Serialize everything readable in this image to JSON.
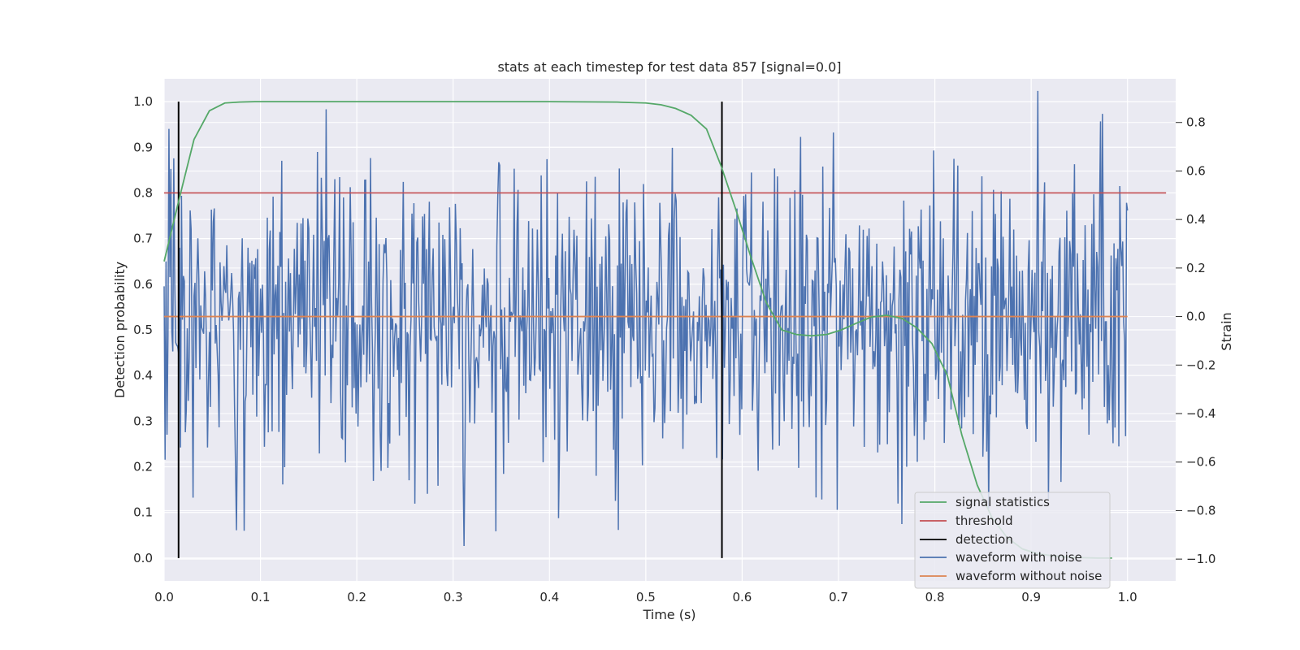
{
  "chart_data": {
    "type": "line",
    "title": "stats at each timestep for test data 857 [signal=0.0]",
    "xlabel": "Time (s)",
    "ylabel_left": "Detection probability",
    "ylabel_right": "Strain",
    "xlim": [
      0.0,
      1.05
    ],
    "ylim_left": [
      -0.05,
      1.05
    ],
    "ylim_right": [
      -1.09,
      0.98
    ],
    "x_ticks": [
      "0.0",
      "0.1",
      "0.2",
      "0.3",
      "0.4",
      "0.5",
      "0.6",
      "0.7",
      "0.8",
      "0.9",
      "1.0"
    ],
    "y_ticks_left": [
      "0.0",
      "0.1",
      "0.2",
      "0.3",
      "0.4",
      "0.5",
      "0.6",
      "0.7",
      "0.8",
      "0.9",
      "1.0"
    ],
    "y_ticks_right": [
      "−1.0",
      "−0.8",
      "−0.6",
      "−0.4",
      "−0.2",
      "0.0",
      "0.2",
      "0.4",
      "0.6",
      "0.8"
    ],
    "grid": true,
    "legend_position": "lower-right",
    "colors": {
      "background": "#eaeaf2",
      "grid": "#ffffff",
      "signal_statistics": "#55a868",
      "threshold": "#c44e52",
      "detection": "#000000",
      "waveform_with_noise": "#4c72b0",
      "waveform_without_noise": "#dd8452"
    },
    "series": [
      {
        "name": "signal statistics",
        "axis": "left",
        "x": [
          0.0,
          0.016,
          0.031,
          0.047,
          0.063,
          0.078,
          0.094,
          0.109,
          0.125,
          0.141,
          0.156,
          0.2,
          0.3,
          0.4,
          0.47,
          0.5,
          0.516,
          0.531,
          0.547,
          0.563,
          0.578,
          0.594,
          0.609,
          0.625,
          0.641,
          0.656,
          0.672,
          0.688,
          0.703,
          0.719,
          0.734,
          0.75,
          0.766,
          0.781,
          0.797,
          0.813,
          0.828,
          0.844,
          0.859,
          0.875,
          0.891,
          0.906,
          0.922,
          0.938,
          0.953,
          0.969,
          0.984
        ],
        "y": [
          0.65,
          0.79,
          0.917,
          0.98,
          0.997,
          0.999,
          1.0,
          1.0,
          1.0,
          1.0,
          1.0,
          1.0,
          1.0,
          1.0,
          0.999,
          0.997,
          0.993,
          0.985,
          0.97,
          0.94,
          0.86,
          0.76,
          0.66,
          0.56,
          0.5,
          0.49,
          0.487,
          0.49,
          0.5,
          0.515,
          0.528,
          0.532,
          0.525,
          0.505,
          0.47,
          0.4,
          0.27,
          0.16,
          0.09,
          0.045,
          0.02,
          0.01,
          0.005,
          0.002,
          0.001,
          0.0,
          0.0
        ]
      },
      {
        "name": "threshold",
        "axis": "left",
        "x": [
          0.0,
          1.04
        ],
        "y": [
          0.8,
          0.8
        ]
      },
      {
        "name": "detection",
        "axis": "left",
        "x_positions": [
          0.015,
          0.579
        ],
        "y_range": [
          0.0,
          1.0
        ]
      },
      {
        "name": "waveform with noise",
        "axis": "right",
        "x_range": [
          0.0,
          1.0
        ],
        "n_points": 1000,
        "amplitude_range": [
          -1.0,
          0.93
        ],
        "std_approx": 0.3
      },
      {
        "name": "waveform without noise",
        "axis": "right",
        "x": [
          0.0,
          1.0
        ],
        "y": [
          0.0,
          0.0
        ]
      }
    ]
  }
}
